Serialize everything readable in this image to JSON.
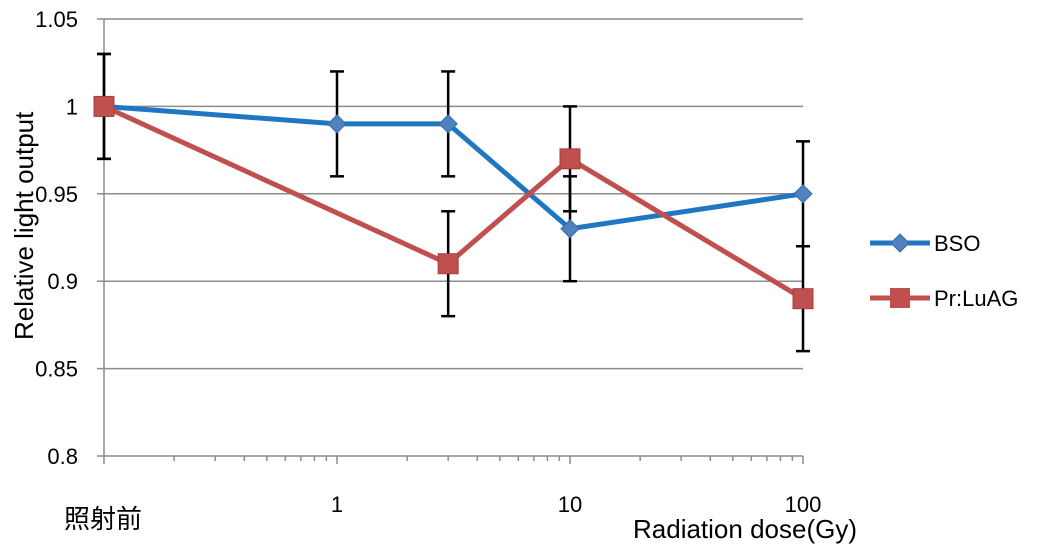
{
  "chart_data": {
    "type": "line",
    "xlabel": "Radiation dose(Gy)",
    "ylabel": "Relative  light output",
    "xscale": "log",
    "xlim": [
      0.1,
      100
    ],
    "ylim": [
      0.8,
      1.05
    ],
    "grid": true,
    "legend_position": "right",
    "yticks": [
      "0.8",
      "0.85",
      "0.9",
      "0.95",
      "1",
      "1.05"
    ],
    "xticks": [
      {
        "value": 0.1,
        "label": "照射前"
      },
      {
        "value": 1,
        "label": "1"
      },
      {
        "value": 10,
        "label": "10"
      },
      {
        "value": 100,
        "label": "100"
      }
    ],
    "series": [
      {
        "name": "BSO",
        "color": "#1f77c4",
        "marker": "diamond",
        "x": [
          0.1,
          1,
          3,
          10,
          100
        ],
        "y": [
          1.0,
          0.99,
          0.99,
          0.93,
          0.95
        ],
        "err": [
          0.03,
          0.03,
          0.03,
          0.03,
          0.03
        ]
      },
      {
        "name": "Pr:LuAG",
        "color": "#c0504d",
        "marker": "square",
        "x": [
          0.1,
          3,
          10,
          100
        ],
        "y": [
          1.0,
          0.91,
          0.97,
          0.89
        ],
        "err": [
          0.03,
          0.03,
          0.03,
          0.03
        ]
      }
    ]
  }
}
